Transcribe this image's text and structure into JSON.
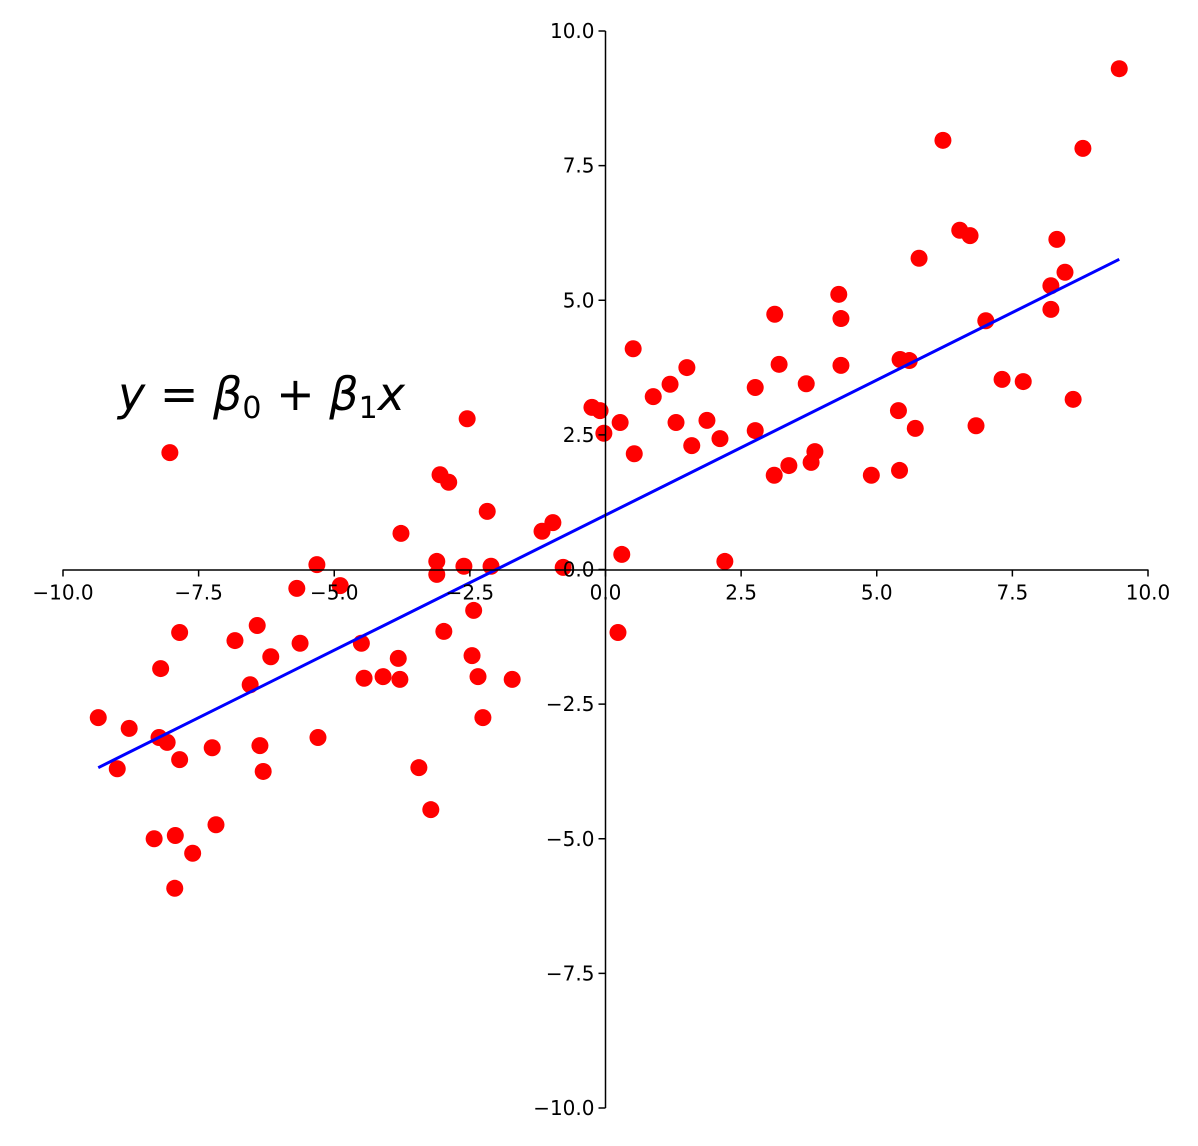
{
  "chart_data": {
    "type": "scatter",
    "title": "",
    "xlabel": "",
    "ylabel": "",
    "xlim": [
      -10,
      10
    ],
    "ylim": [
      -10,
      10
    ],
    "grid": false,
    "spines": "centered at origin",
    "x_ticks": [
      "−10.0",
      "−7.5",
      "−5.0",
      "−2.5",
      "0.0",
      "2.5",
      "5.0",
      "7.5",
      "10.0"
    ],
    "y_ticks": [
      "−10.0",
      "−7.5",
      "−5.0",
      "−2.5",
      "0.0",
      "2.5",
      "5.0",
      "7.5",
      "10.0"
    ],
    "annotation": {
      "y": "y",
      "eq": " = ",
      "b0": "β",
      "s0": "0",
      "plus": " + ",
      "b1": "β",
      "s1": "1",
      "x": "x"
    },
    "points": {
      "color": "#ff0000",
      "x": [
        -9.35,
        -9.0,
        -8.78,
        -8.32,
        -8.23,
        -8.2,
        -8.08,
        -8.03,
        -7.94,
        -7.93,
        -7.85,
        -7.85,
        -7.61,
        -7.25,
        -7.18,
        -6.83,
        -6.55,
        -6.42,
        -6.37,
        -6.31,
        -6.17,
        -5.69,
        -5.63,
        -5.32,
        -5.3,
        -4.89,
        -4.5,
        -4.45,
        -4.1,
        -3.82,
        -3.79,
        -3.77,
        -3.44,
        -3.22,
        -3.11,
        -3.11,
        -3.05,
        -2.98,
        -2.89,
        -2.61,
        -2.55,
        -2.46,
        -2.43,
        -2.35,
        -2.26,
        -2.18,
        -2.11,
        -1.72,
        -1.17,
        -0.97,
        -0.78,
        -0.25,
        -0.1,
        -0.03,
        0.23,
        0.27,
        0.3,
        0.51,
        0.53,
        0.88,
        1.19,
        1.3,
        1.5,
        1.59,
        1.87,
        2.11,
        2.2,
        2.76,
        2.76,
        3.11,
        3.12,
        3.2,
        3.38,
        3.7,
        3.79,
        3.86,
        4.3,
        4.34,
        4.34,
        4.9,
        5.4,
        5.42,
        5.43,
        5.6,
        5.71,
        5.78,
        6.22,
        6.53,
        6.72,
        6.83,
        7.01,
        7.31,
        7.7,
        8.21,
        8.21,
        8.32,
        8.47,
        8.62,
        8.8,
        9.47
      ],
      "y": [
        -2.75,
        -3.7,
        -2.95,
        -5.0,
        -3.12,
        -1.84,
        -3.21,
        2.17,
        -5.92,
        -4.94,
        -3.53,
        -1.17,
        -5.27,
        -3.31,
        -4.74,
        -1.32,
        -2.14,
        -1.04,
        -3.27,
        -3.75,
        -1.62,
        -0.35,
        -1.37,
        0.09,
        -3.12,
        -0.3,
        -1.37,
        -2.02,
        -1.99,
        -1.65,
        -2.04,
        0.67,
        -3.68,
        -4.46,
        0.15,
        -0.09,
        1.76,
        -1.15,
        1.62,
        0.06,
        2.8,
        -1.6,
        -0.76,
        -1.99,
        -2.75,
        1.08,
        0.06,
        -2.04,
        0.71,
        0.87,
        0.04,
        3.01,
        2.95,
        2.53,
        -1.17,
        2.73,
        0.28,
        4.1,
        2.15,
        3.21,
        3.44,
        2.73,
        3.75,
        2.3,
        2.77,
        2.43,
        0.15,
        3.38,
        2.58,
        1.75,
        4.74,
        3.81,
        1.93,
        3.45,
        1.99,
        2.19,
        5.11,
        4.66,
        3.79,
        1.75,
        2.95,
        1.84,
        3.9,
        3.88,
        2.62,
        5.78,
        7.97,
        6.3,
        6.2,
        2.67,
        4.62,
        3.53,
        3.49,
        5.27,
        4.83,
        6.13,
        5.52,
        3.16,
        7.82,
        9.3
      ]
    },
    "fit_line": {
      "color": "#0000ff",
      "x": [
        -9.35,
        9.47
      ],
      "y": [
        -3.68,
        5.76
      ]
    }
  }
}
